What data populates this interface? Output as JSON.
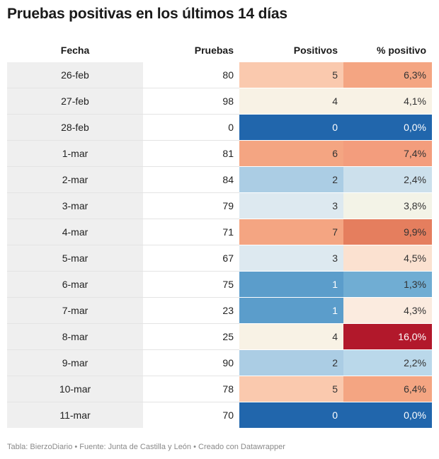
{
  "title": "Pruebas positivas en los últimos 14 días",
  "footer": "Tabla: BierzoDiario • Fuente: Junta de Castilla y León • Creado con Datawrapper",
  "chart_data": {
    "type": "table",
    "columns": [
      "Fecha",
      "Pruebas",
      "Positivos",
      "% positivo"
    ],
    "rows": [
      {
        "fecha": "26-feb",
        "pruebas": "80",
        "positivos": "5",
        "pct": "6,3%",
        "pos_color": "#fac9ae",
        "pct_color": "#f4a582"
      },
      {
        "fecha": "27-feb",
        "pruebas": "98",
        "positivos": "4",
        "pct": "4,1%",
        "pos_color": "#f8f2e5",
        "pct_color": "#f8f2e5"
      },
      {
        "fecha": "28-feb",
        "pruebas": "0",
        "positivos": "0",
        "pct": "0,0%",
        "pos_color": "#2166ac",
        "pct_color": "#2166ac"
      },
      {
        "fecha": "1-mar",
        "pruebas": "81",
        "positivos": "6",
        "pct": "7,4%",
        "pos_color": "#f4a582",
        "pct_color": "#f39d7d"
      },
      {
        "fecha": "2-mar",
        "pruebas": "84",
        "positivos": "2",
        "pct": "2,4%",
        "pos_color": "#abcde4",
        "pct_color": "#cce0ec"
      },
      {
        "fecha": "3-mar",
        "pruebas": "79",
        "positivos": "3",
        "pct": "3,8%",
        "pos_color": "#dde9f0",
        "pct_color": "#f3f3e7"
      },
      {
        "fecha": "4-mar",
        "pruebas": "71",
        "positivos": "7",
        "pct": "9,9%",
        "pos_color": "#f4a582",
        "pct_color": "#e57e5e"
      },
      {
        "fecha": "5-mar",
        "pruebas": "67",
        "positivos": "3",
        "pct": "4,5%",
        "pos_color": "#dde9f0",
        "pct_color": "#fbe1d0"
      },
      {
        "fecha": "6-mar",
        "pruebas": "75",
        "positivos": "1",
        "pct": "1,3%",
        "pos_color": "#5b9dcb",
        "pct_color": "#70add3"
      },
      {
        "fecha": "7-mar",
        "pruebas": "23",
        "positivos": "1",
        "pct": "4,3%",
        "pos_color": "#5b9dcb",
        "pct_color": "#fbebdf"
      },
      {
        "fecha": "8-mar",
        "pruebas": "25",
        "positivos": "4",
        "pct": "16,0%",
        "pos_color": "#f8f2e5",
        "pct_color": "#b2182b"
      },
      {
        "fecha": "9-mar",
        "pruebas": "90",
        "positivos": "2",
        "pct": "2,2%",
        "pos_color": "#abcde4",
        "pct_color": "#bad8ea"
      },
      {
        "fecha": "10-mar",
        "pruebas": "78",
        "positivos": "5",
        "pct": "6,4%",
        "pos_color": "#fac9ae",
        "pct_color": "#f4a582"
      },
      {
        "fecha": "11-mar",
        "pruebas": "70",
        "positivos": "0",
        "pct": "0,0%",
        "pos_color": "#2166ac",
        "pct_color": "#2166ac"
      }
    ]
  }
}
